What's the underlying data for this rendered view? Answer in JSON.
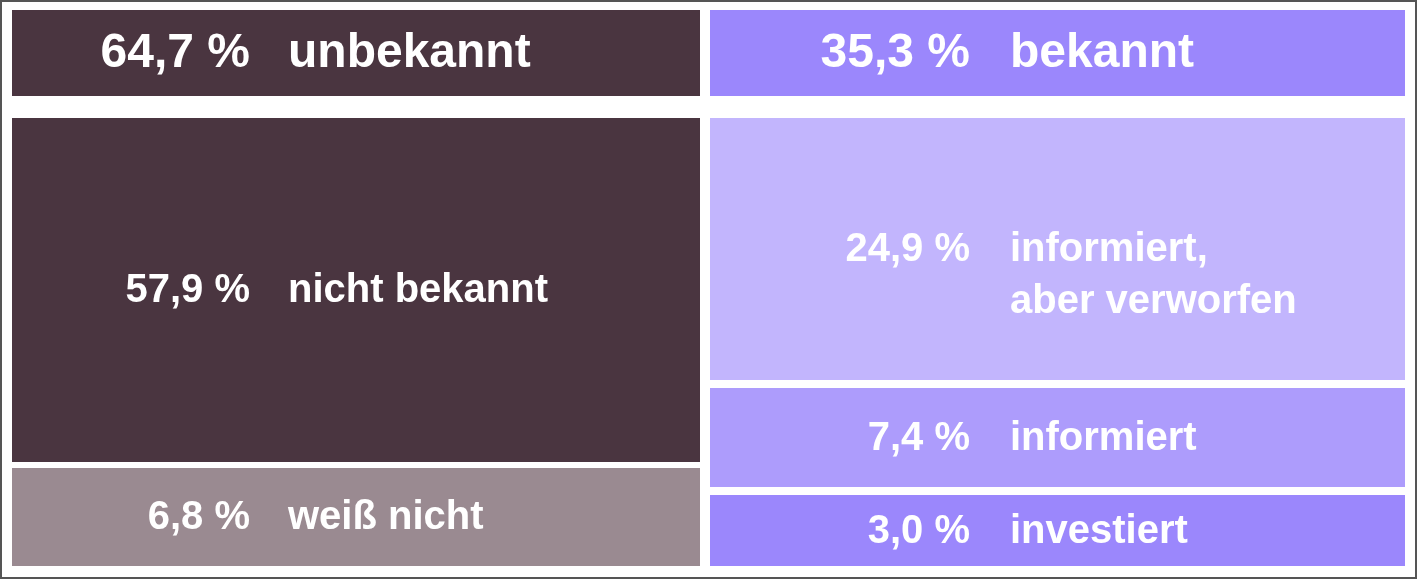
{
  "chart_data": {
    "type": "other",
    "categories": [
      "unbekannt",
      "bekannt",
      "nicht bekannt",
      "weiß nicht",
      "informiert,\naber verworfen",
      "informiert",
      "investiert"
    ],
    "values": [
      64.7,
      35.3,
      57.9,
      6.8,
      24.9,
      7.4,
      3.0
    ],
    "value_labels": [
      "64,7 %",
      "35,3 %",
      "57,9 %",
      "6,8 %",
      "24,9 %",
      "7,4 %",
      "3,0 %"
    ],
    "colors": [
      "#4a3540",
      "#9b87fc",
      "#4a3540",
      "#9a8a91",
      "#c2b5fd",
      "#ad9cfc",
      "#9b87fc"
    ]
  }
}
